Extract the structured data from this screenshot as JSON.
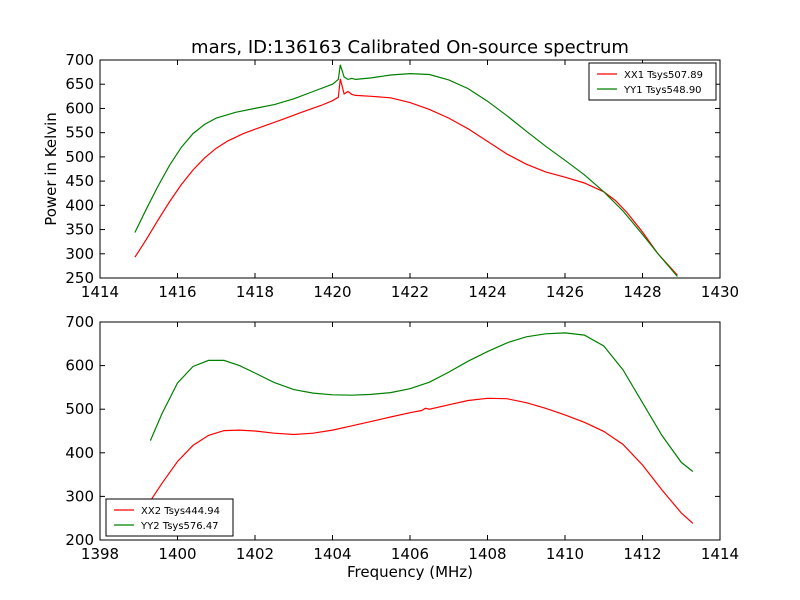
{
  "chart_data": [
    {
      "type": "line",
      "title": "mars, ID:136163 Calibrated On-source spectrum",
      "xlabel": "",
      "ylabel": "Power in Kelvin",
      "xlim": [
        1414,
        1430
      ],
      "ylim": [
        250,
        700
      ],
      "xticks": [
        "1414",
        "1416",
        "1418",
        "1420",
        "1422",
        "1424",
        "1426",
        "1428",
        "1430"
      ],
      "yticks": [
        "250",
        "300",
        "350",
        "400",
        "450",
        "500",
        "550",
        "600",
        "650",
        "700"
      ],
      "legend_position": "top-right",
      "series": [
        {
          "name": "XX1 Tsys507.89",
          "color": "#ff0000",
          "x": [
            1414.9,
            1415.2,
            1415.5,
            1415.8,
            1416.1,
            1416.4,
            1416.7,
            1417.0,
            1417.3,
            1417.7,
            1418.2,
            1418.7,
            1419.2,
            1419.7,
            1420.0,
            1420.15,
            1420.2,
            1420.3,
            1420.4,
            1420.5,
            1420.6,
            1421.0,
            1421.5,
            1422.0,
            1422.5,
            1423.0,
            1423.5,
            1424.0,
            1424.5,
            1425.0,
            1425.5,
            1426.0,
            1426.5,
            1427.0,
            1427.3,
            1427.6,
            1428.0,
            1428.4,
            1428.9
          ],
          "y": [
            293,
            330,
            370,
            408,
            443,
            473,
            498,
            518,
            533,
            548,
            563,
            577,
            592,
            606,
            616,
            623,
            661,
            630,
            635,
            629,
            627,
            625,
            622,
            612,
            598,
            580,
            558,
            532,
            506,
            485,
            469,
            458,
            446,
            428,
            410,
            385,
            345,
            300,
            256
          ]
        },
        {
          "name": "YY1 Tsys548.90",
          "color": "#008000",
          "x": [
            1414.9,
            1415.2,
            1415.5,
            1415.8,
            1416.1,
            1416.4,
            1416.7,
            1417.0,
            1417.5,
            1418.0,
            1418.5,
            1419.0,
            1419.5,
            1420.0,
            1420.15,
            1420.2,
            1420.3,
            1420.4,
            1420.5,
            1420.6,
            1421.0,
            1421.5,
            1422.0,
            1422.5,
            1423.0,
            1423.5,
            1424.0,
            1424.5,
            1425.0,
            1425.5,
            1426.0,
            1426.5,
            1427.0,
            1427.5,
            1428.0,
            1428.4,
            1428.9
          ],
          "y": [
            344,
            393,
            440,
            483,
            520,
            548,
            567,
            580,
            592,
            600,
            608,
            620,
            635,
            650,
            660,
            690,
            665,
            660,
            662,
            660,
            663,
            669,
            672,
            670,
            659,
            641,
            615,
            585,
            553,
            522,
            493,
            463,
            428,
            388,
            340,
            300,
            253
          ]
        }
      ]
    },
    {
      "type": "line",
      "title": "",
      "xlabel": "Frequency (MHz)",
      "ylabel": "",
      "xlim": [
        1398,
        1414
      ],
      "ylim": [
        200,
        700
      ],
      "xticks": [
        "1398",
        "1400",
        "1402",
        "1404",
        "1406",
        "1408",
        "1410",
        "1412",
        "1414"
      ],
      "yticks": [
        "200",
        "300",
        "400",
        "500",
        "600",
        "700"
      ],
      "legend_position": "bottom-left",
      "series": [
        {
          "name": "XX2 Tsys444.94",
          "color": "#ff0000",
          "x": [
            1399.3,
            1399.6,
            1400.0,
            1400.4,
            1400.8,
            1401.2,
            1401.6,
            1402.0,
            1402.5,
            1403.0,
            1403.5,
            1404.0,
            1404.5,
            1405.0,
            1405.5,
            1406.0,
            1406.3,
            1406.4,
            1406.5,
            1407.0,
            1407.5,
            1408.0,
            1408.5,
            1409.0,
            1409.5,
            1410.0,
            1410.5,
            1411.0,
            1411.5,
            1412.0,
            1412.5,
            1413.0,
            1413.3
          ],
          "y": [
            290,
            330,
            380,
            417,
            440,
            451,
            452,
            450,
            445,
            442,
            445,
            452,
            462,
            472,
            482,
            492,
            497,
            502,
            500,
            510,
            520,
            525,
            524,
            515,
            502,
            487,
            470,
            449,
            419,
            372,
            315,
            262,
            238
          ]
        },
        {
          "name": "YY2 Tsys576.47",
          "color": "#008000",
          "x": [
            1399.3,
            1399.6,
            1400.0,
            1400.4,
            1400.8,
            1401.2,
            1401.6,
            1402.0,
            1402.5,
            1403.0,
            1403.5,
            1404.0,
            1404.5,
            1405.0,
            1405.5,
            1406.0,
            1406.5,
            1407.0,
            1407.5,
            1408.0,
            1408.5,
            1409.0,
            1409.5,
            1410.0,
            1410.5,
            1411.0,
            1411.5,
            1412.0,
            1412.5,
            1413.0,
            1413.3
          ],
          "y": [
            428,
            490,
            560,
            598,
            612,
            612,
            600,
            583,
            561,
            545,
            537,
            533,
            532,
            534,
            538,
            547,
            562,
            585,
            610,
            632,
            652,
            666,
            673,
            675,
            670,
            645,
            590,
            515,
            440,
            378,
            357
          ]
        }
      ]
    }
  ]
}
